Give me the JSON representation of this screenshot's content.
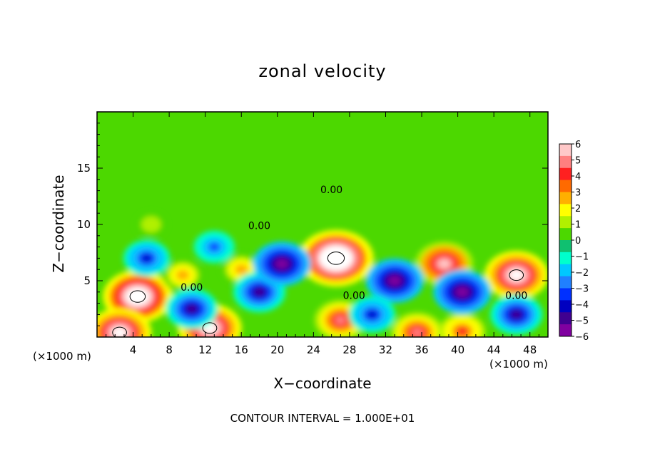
{
  "chart_data": {
    "type": "heatmap",
    "title": "zonal velocity",
    "xlabel": "X−coordinate",
    "ylabel": "Z−coordinate",
    "x_unit_left": "(×1000 m)",
    "x_unit_right": "(×1000 m)",
    "footer": "CONTOUR INTERVAL = 1.000E+01",
    "xlim": [
      0,
      50
    ],
    "ylim": [
      0,
      20
    ],
    "x_ticks": [
      4,
      8,
      12,
      16,
      20,
      24,
      28,
      32,
      36,
      40,
      44,
      48
    ],
    "x_tick_labels": [
      "4",
      "8",
      "12",
      "16",
      "20",
      "24",
      "28",
      "32",
      "36",
      "40",
      "44",
      "48"
    ],
    "y_ticks": [
      5,
      10,
      15
    ],
    "y_tick_labels": [
      "5",
      "10",
      "15"
    ],
    "colorbar": {
      "min": -6,
      "max": 6,
      "labels": [
        "6",
        "5",
        "4",
        "3",
        "2",
        "1",
        "0",
        "−1",
        "−2",
        "−3",
        "−4",
        "−5",
        "−6"
      ],
      "colors": [
        "#ffc8c8",
        "#ff8080",
        "#ff2020",
        "#ff6a00",
        "#ffb000",
        "#ffff00",
        "#b0f000",
        "#4cd800",
        "#10c070",
        "#00ffcc",
        "#00c8ff",
        "#2080ff",
        "#0030ff",
        "#0000c0",
        "#400090",
        "#8000a0"
      ]
    },
    "contour_label": "0.00",
    "features": [
      {
        "x": 4.5,
        "z": 3.6,
        "value": 8
      },
      {
        "x": 26.5,
        "z": 7.0,
        "value": 9
      },
      {
        "x": 46.5,
        "z": 5.5,
        "value": 7
      },
      {
        "x": 38.5,
        "z": 6.5,
        "value": 6
      },
      {
        "x": 12.5,
        "z": 0.8,
        "value": 7
      },
      {
        "x": 2.5,
        "z": 0.4,
        "value": 7
      },
      {
        "x": 27.0,
        "z": 1.5,
        "value": 5
      },
      {
        "x": 16.0,
        "z": 6.0,
        "value": 3
      },
      {
        "x": 9.5,
        "z": 5.5,
        "value": 3
      },
      {
        "x": 35.5,
        "z": 0.4,
        "value": 5
      },
      {
        "x": 40.5,
        "z": 0.5,
        "value": 4
      },
      {
        "x": 5.5,
        "z": 7.0,
        "value": -4
      },
      {
        "x": 13.0,
        "z": 8.0,
        "value": -3
      },
      {
        "x": 18.0,
        "z": 4.0,
        "value": -5
      },
      {
        "x": 20.5,
        "z": 6.5,
        "value": -6
      },
      {
        "x": 33.0,
        "z": 5.0,
        "value": -6
      },
      {
        "x": 40.5,
        "z": 4.0,
        "value": -6
      },
      {
        "x": 10.5,
        "z": 2.5,
        "value": -5
      },
      {
        "x": 46.5,
        "z": 2.0,
        "value": -5
      },
      {
        "x": 30.5,
        "z": 2.0,
        "value": -4
      },
      {
        "x": 6.0,
        "z": 10.0,
        "value": 1.5
      }
    ],
    "grid": false
  }
}
